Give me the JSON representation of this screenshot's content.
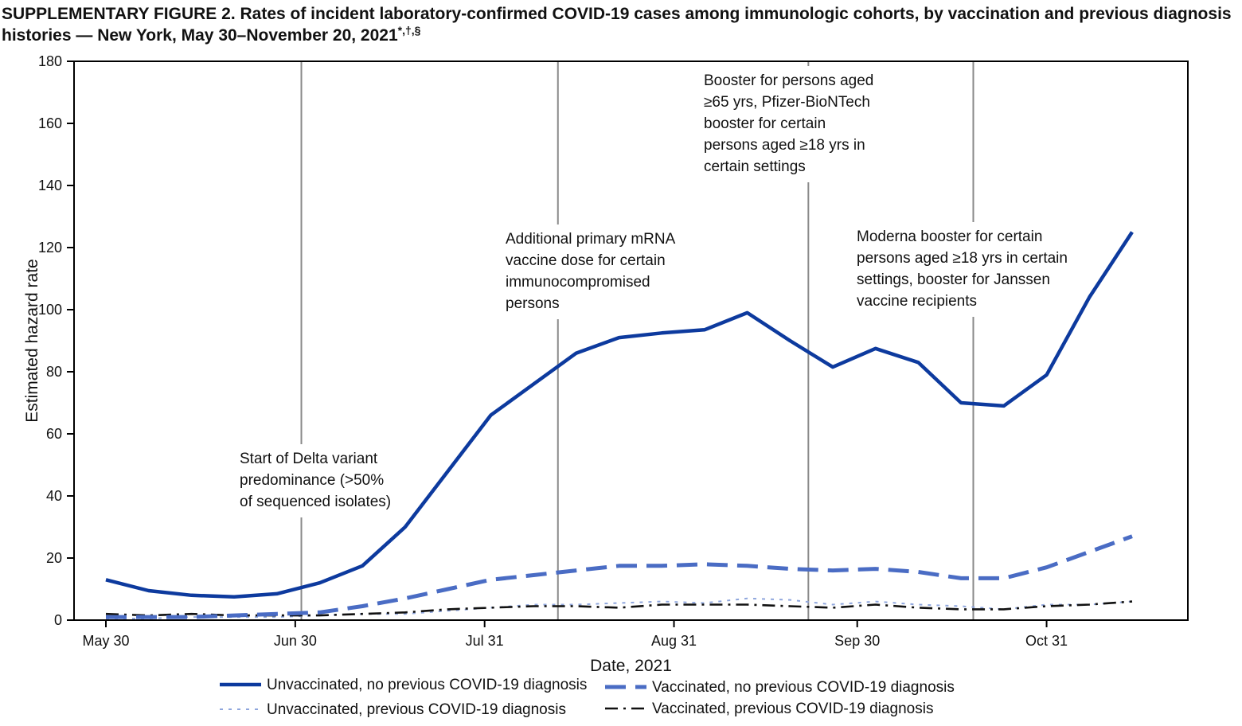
{
  "title": {
    "main": "SUPPLEMENTARY FIGURE 2. Rates of incident laboratory-confirmed COVID-19 cases among immunologic cohorts, by vaccination and previous diagnosis histories — New York, May 30–November 20, 2021",
    "marks": "*,†,§"
  },
  "chart_data": {
    "type": "line",
    "xlabel": "Date, 2021",
    "ylabel": "Estimated hazard rate",
    "x_range": [
      "2021-05-30",
      "2021-11-20"
    ],
    "ylim": [
      0,
      180
    ],
    "y_ticks": [
      0,
      20,
      40,
      60,
      80,
      100,
      120,
      140,
      160,
      180
    ],
    "x_ticks": [
      {
        "date": "2021-05-30",
        "label": "May 30"
      },
      {
        "date": "2021-06-30",
        "label": "Jun 30"
      },
      {
        "date": "2021-07-31",
        "label": "Jul 31"
      },
      {
        "date": "2021-08-31",
        "label": "Aug 31"
      },
      {
        "date": "2021-09-30",
        "label": "Sep 30"
      },
      {
        "date": "2021-10-31",
        "label": "Oct 31"
      }
    ],
    "grid": false,
    "legend_position": "bottom",
    "x": [
      "2021-05-30",
      "2021-06-06",
      "2021-06-13",
      "2021-06-20",
      "2021-06-27",
      "2021-07-04",
      "2021-07-11",
      "2021-07-18",
      "2021-07-25",
      "2021-08-01",
      "2021-08-08",
      "2021-08-15",
      "2021-08-22",
      "2021-08-29",
      "2021-09-05",
      "2021-09-12",
      "2021-09-19",
      "2021-09-26",
      "2021-10-03",
      "2021-10-10",
      "2021-10-17",
      "2021-10-24",
      "2021-10-31",
      "2021-11-07",
      "2021-11-14"
    ],
    "series": [
      {
        "name": "Unvaccinated, no previous COVID-19 diagnosis",
        "color": "#0d3a9e",
        "style": "solid",
        "values": [
          13,
          9.5,
          8,
          7.5,
          8.5,
          12,
          17.5,
          30,
          48,
          66,
          76,
          86,
          91,
          92.5,
          93.5,
          99,
          90,
          81.5,
          87.5,
          83,
          70,
          69,
          79,
          104,
          125
        ]
      },
      {
        "name": "Vaccinated, no previous COVID-19 diagnosis",
        "color": "#4a6cc4",
        "style": "dashed",
        "values": [
          1,
          1,
          1,
          1.5,
          2,
          2.5,
          4.5,
          7,
          10,
          13,
          14.5,
          16,
          17.5,
          17.5,
          18,
          17.5,
          16.5,
          16,
          16.5,
          15.5,
          13.5,
          13.5,
          17,
          22,
          27
        ]
      },
      {
        "name": "Unvaccinated, previous COVID-19 diagnosis",
        "color": "#8fa6dd",
        "style": "dotted",
        "values": [
          0.5,
          0.5,
          1,
          1,
          1,
          1.5,
          2,
          2,
          3,
          4,
          5,
          5,
          5.5,
          6,
          5.5,
          7,
          6.5,
          5,
          6,
          5,
          4.5,
          3.5,
          5,
          5,
          6
        ]
      },
      {
        "name": "Vaccinated, previous COVID-19 diagnosis",
        "color": "#111111",
        "style": "dashdot",
        "values": [
          2,
          1.5,
          2,
          1.5,
          1.5,
          1.5,
          2,
          2.5,
          3.5,
          4,
          4.5,
          4.5,
          4,
          5,
          5,
          5,
          4.5,
          4,
          5,
          4,
          3.5,
          3.5,
          4.5,
          5,
          6
        ]
      }
    ],
    "events": [
      {
        "date": "2021-07-01",
        "label_lines": [
          "Start of Delta variant",
          "predominance (>50%",
          "of sequenced isolates)"
        ]
      },
      {
        "date": "2021-08-12",
        "label_lines": [
          "Additional primary mRNA",
          "vaccine dose for certain",
          "immunocompromised",
          "persons"
        ]
      },
      {
        "date": "2021-09-22",
        "label_lines": [
          "Booster for persons aged",
          "≥65 yrs, Pfizer-BioNTech",
          "booster for certain",
          "persons aged ≥18 yrs in",
          "certain settings"
        ]
      },
      {
        "date": "2021-10-19",
        "label_lines": [
          "Moderna booster for certain",
          "persons aged ≥18 yrs in certain",
          "settings, booster for Janssen",
          "vaccine recipients"
        ]
      }
    ]
  }
}
